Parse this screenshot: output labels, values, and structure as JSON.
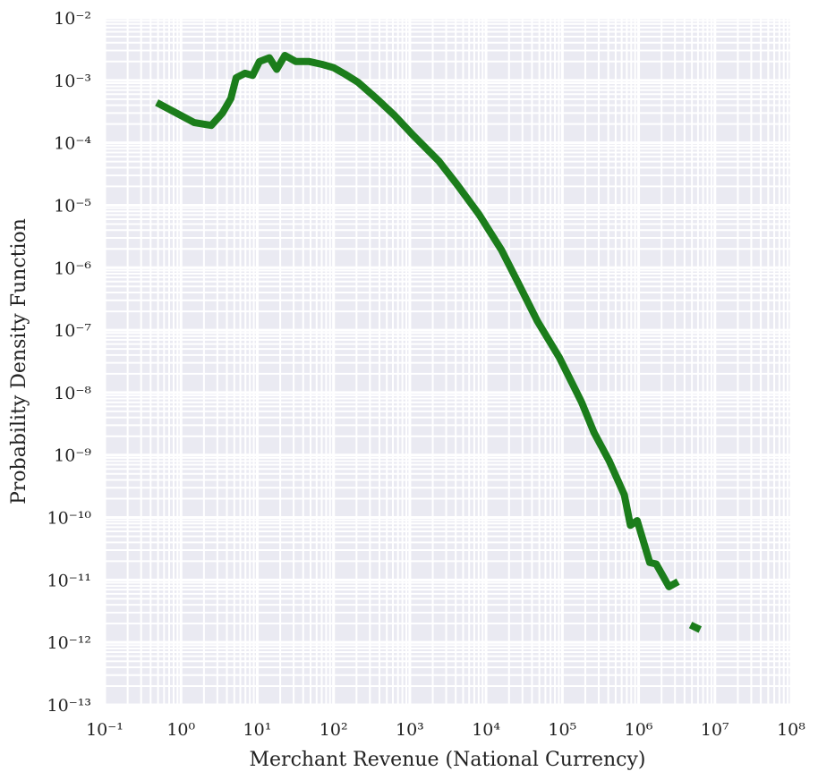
{
  "chart_data": {
    "type": "line",
    "xlabel": "Merchant Revenue (National Currency)",
    "ylabel": "Probability Density Function",
    "xscale": "log",
    "yscale": "log",
    "grid": true,
    "minor_grid": true,
    "xlim": [
      0.1,
      100000000
    ],
    "ylim": [
      1e-13,
      0.01
    ],
    "xticks": [
      {
        "value": 0.1,
        "label": "10⁻¹"
      },
      {
        "value": 1,
        "label": "10⁰"
      },
      {
        "value": 10,
        "label": "10¹"
      },
      {
        "value": 100,
        "label": "10²"
      },
      {
        "value": 1000,
        "label": "10³"
      },
      {
        "value": 10000,
        "label": "10⁴"
      },
      {
        "value": 100000,
        "label": "10⁵"
      },
      {
        "value": 1000000,
        "label": "10⁶"
      },
      {
        "value": 10000000,
        "label": "10⁷"
      },
      {
        "value": 100000000,
        "label": "10⁸"
      }
    ],
    "yticks": [
      {
        "value": 1e-13,
        "label": "10⁻¹³"
      },
      {
        "value": 1e-12,
        "label": "10⁻¹²"
      },
      {
        "value": 1e-11,
        "label": "10⁻¹¹"
      },
      {
        "value": 1e-10,
        "label": "10⁻¹⁰"
      },
      {
        "value": 1e-09,
        "label": "10⁻⁹"
      },
      {
        "value": 1e-08,
        "label": "10⁻⁸"
      },
      {
        "value": 1e-07,
        "label": "10⁻⁷"
      },
      {
        "value": 1e-06,
        "label": "10⁻⁶"
      },
      {
        "value": 1e-05,
        "label": "10⁻⁵"
      },
      {
        "value": 0.0001,
        "label": "10⁻⁴"
      },
      {
        "value": 0.001,
        "label": "10⁻³"
      },
      {
        "value": 0.01,
        "label": "10⁻²"
      }
    ],
    "series": [
      {
        "color": "#1b7d1b",
        "x": [
          0.48,
          1.5,
          2.5,
          3.5,
          4.5,
          5.3,
          6.9,
          8.7,
          10.7,
          14.4,
          18,
          23,
          32,
          48,
          71,
          100,
          141,
          210,
          360,
          620,
          1120,
          2400,
          4100,
          8100,
          16000,
          27000,
          47000,
          92000,
          180000,
          260000,
          410000,
          650000,
          780000,
          960000,
          1400000,
          1700000,
          2500000,
          3300000,
          4000000,
          4800000,
          6400000
        ],
        "values": [
          0.00044,
          0.00021,
          0.00019,
          0.0003,
          0.00051,
          0.0011,
          0.0013,
          0.0012,
          0.002,
          0.0023,
          0.0015,
          0.0025,
          0.002,
          0.002,
          0.0018,
          0.0016,
          0.00126,
          0.00093,
          0.00052,
          0.00028,
          0.00013,
          5.1e-05,
          2.2e-05,
          7.1e-06,
          1.9e-06,
          5.4e-07,
          1.4e-07,
          3.6e-08,
          6.9e-09,
          2.3e-09,
          8.1e-10,
          2.3e-10,
          7.5e-11,
          8.9e-11,
          1.9e-11,
          1.8e-11,
          7.8e-12,
          9.4e-12,
          null,
          1.9e-12,
          1.6e-12
        ]
      }
    ]
  }
}
